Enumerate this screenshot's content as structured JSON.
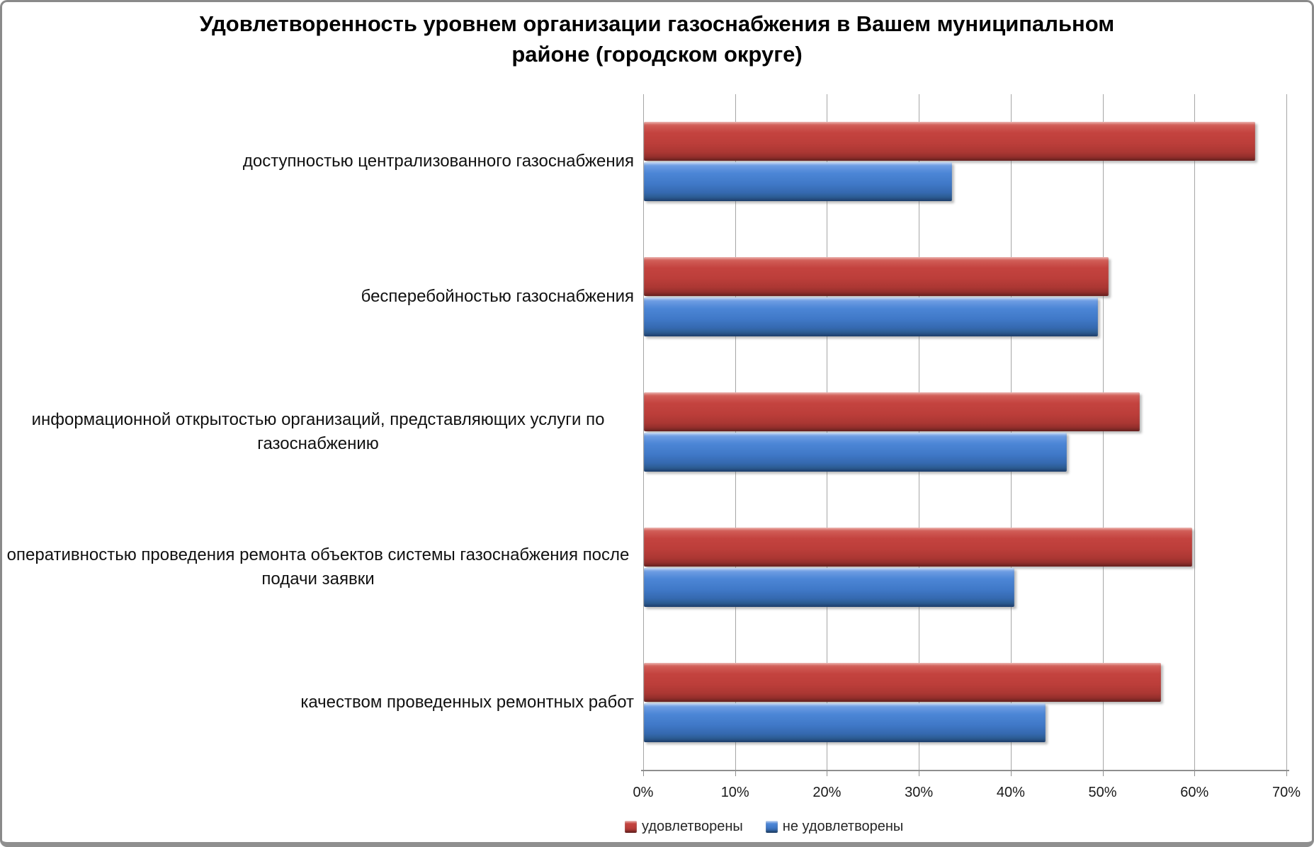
{
  "title": {
    "text": "Удовлетворенность уровнем организации газоснабжения в Вашем муниципальном районе (городском округе)",
    "lines": [
      "Удовлетворенность уровнем организации газоснабжения в Вашем муниципальном",
      "районе (городском округе)"
    ]
  },
  "chart_data": {
    "type": "bar",
    "orientation": "horizontal",
    "title": "Удовлетворенность уровнем организации газоснабжения в Вашем муниципальном районе (городском округе)",
    "categories": [
      "доступностью централизованного газоснабжения",
      "бесперебойностью  газоснабжения",
      "информационной открытостью организаций, представляющих услуги по газоснабжению",
      "оперативностью проведения ремонта объектов системы газоснабжения после подачи заявки",
      "качеством проведенных ремонтных работ"
    ],
    "series": [
      {
        "name": "удовлетворены",
        "color": "#c0403c",
        "values": [
          66.5,
          50.6,
          54.0,
          59.7,
          56.3
        ]
      },
      {
        "name": "не удовлетворены",
        "color": "#4079c8",
        "values": [
          33.5,
          49.4,
          46.0,
          40.3,
          43.7
        ]
      }
    ],
    "unit": "%",
    "xlim": [
      0,
      70
    ],
    "x_ticks": [
      "0%",
      "10%",
      "20%",
      "30%",
      "40%",
      "50%",
      "60%",
      "70%"
    ],
    "grid": true,
    "legend_position": "bottom",
    "gridline_color": "#a6a6a6",
    "background_color": "#ffffff"
  }
}
